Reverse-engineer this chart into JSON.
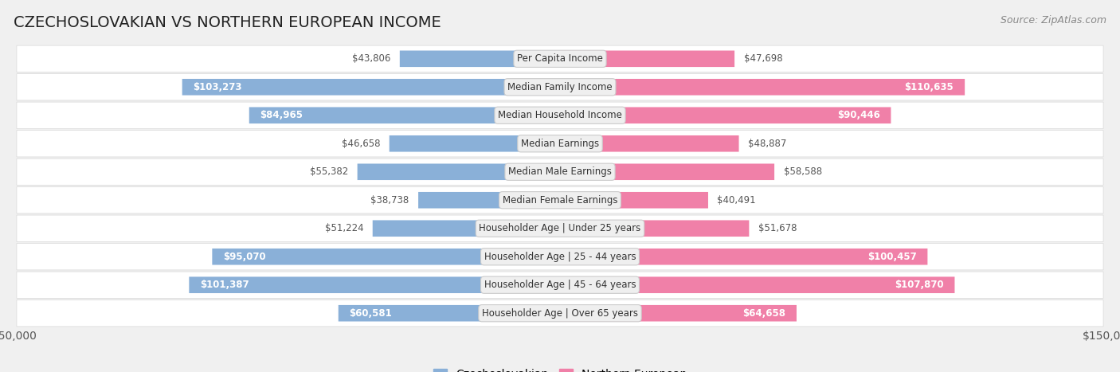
{
  "title": "CZECHOSLOVAKIAN VS NORTHERN EUROPEAN INCOME",
  "source": "Source: ZipAtlas.com",
  "categories": [
    "Per Capita Income",
    "Median Family Income",
    "Median Household Income",
    "Median Earnings",
    "Median Male Earnings",
    "Median Female Earnings",
    "Householder Age | Under 25 years",
    "Householder Age | 25 - 44 years",
    "Householder Age | 45 - 64 years",
    "Householder Age | Over 65 years"
  ],
  "czechoslovakian": [
    43806,
    103273,
    84965,
    46658,
    55382,
    38738,
    51224,
    95070,
    101387,
    60581
  ],
  "northern_european": [
    47698,
    110635,
    90446,
    48887,
    58588,
    40491,
    51678,
    100457,
    107870,
    64658
  ],
  "max_val": 150000,
  "blue_color": "#8ab0d8",
  "pink_color": "#f080a8",
  "bar_height": 0.58,
  "bg_color": "#f0f0f0",
  "row_bg_color": "#ffffff",
  "label_bg_color": "#efefef",
  "title_fontsize": 14,
  "tick_fontsize": 10,
  "source_fontsize": 9,
  "legend_fontsize": 10,
  "value_fontsize": 8.5,
  "category_fontsize": 8.5,
  "label_threshold": 60000
}
